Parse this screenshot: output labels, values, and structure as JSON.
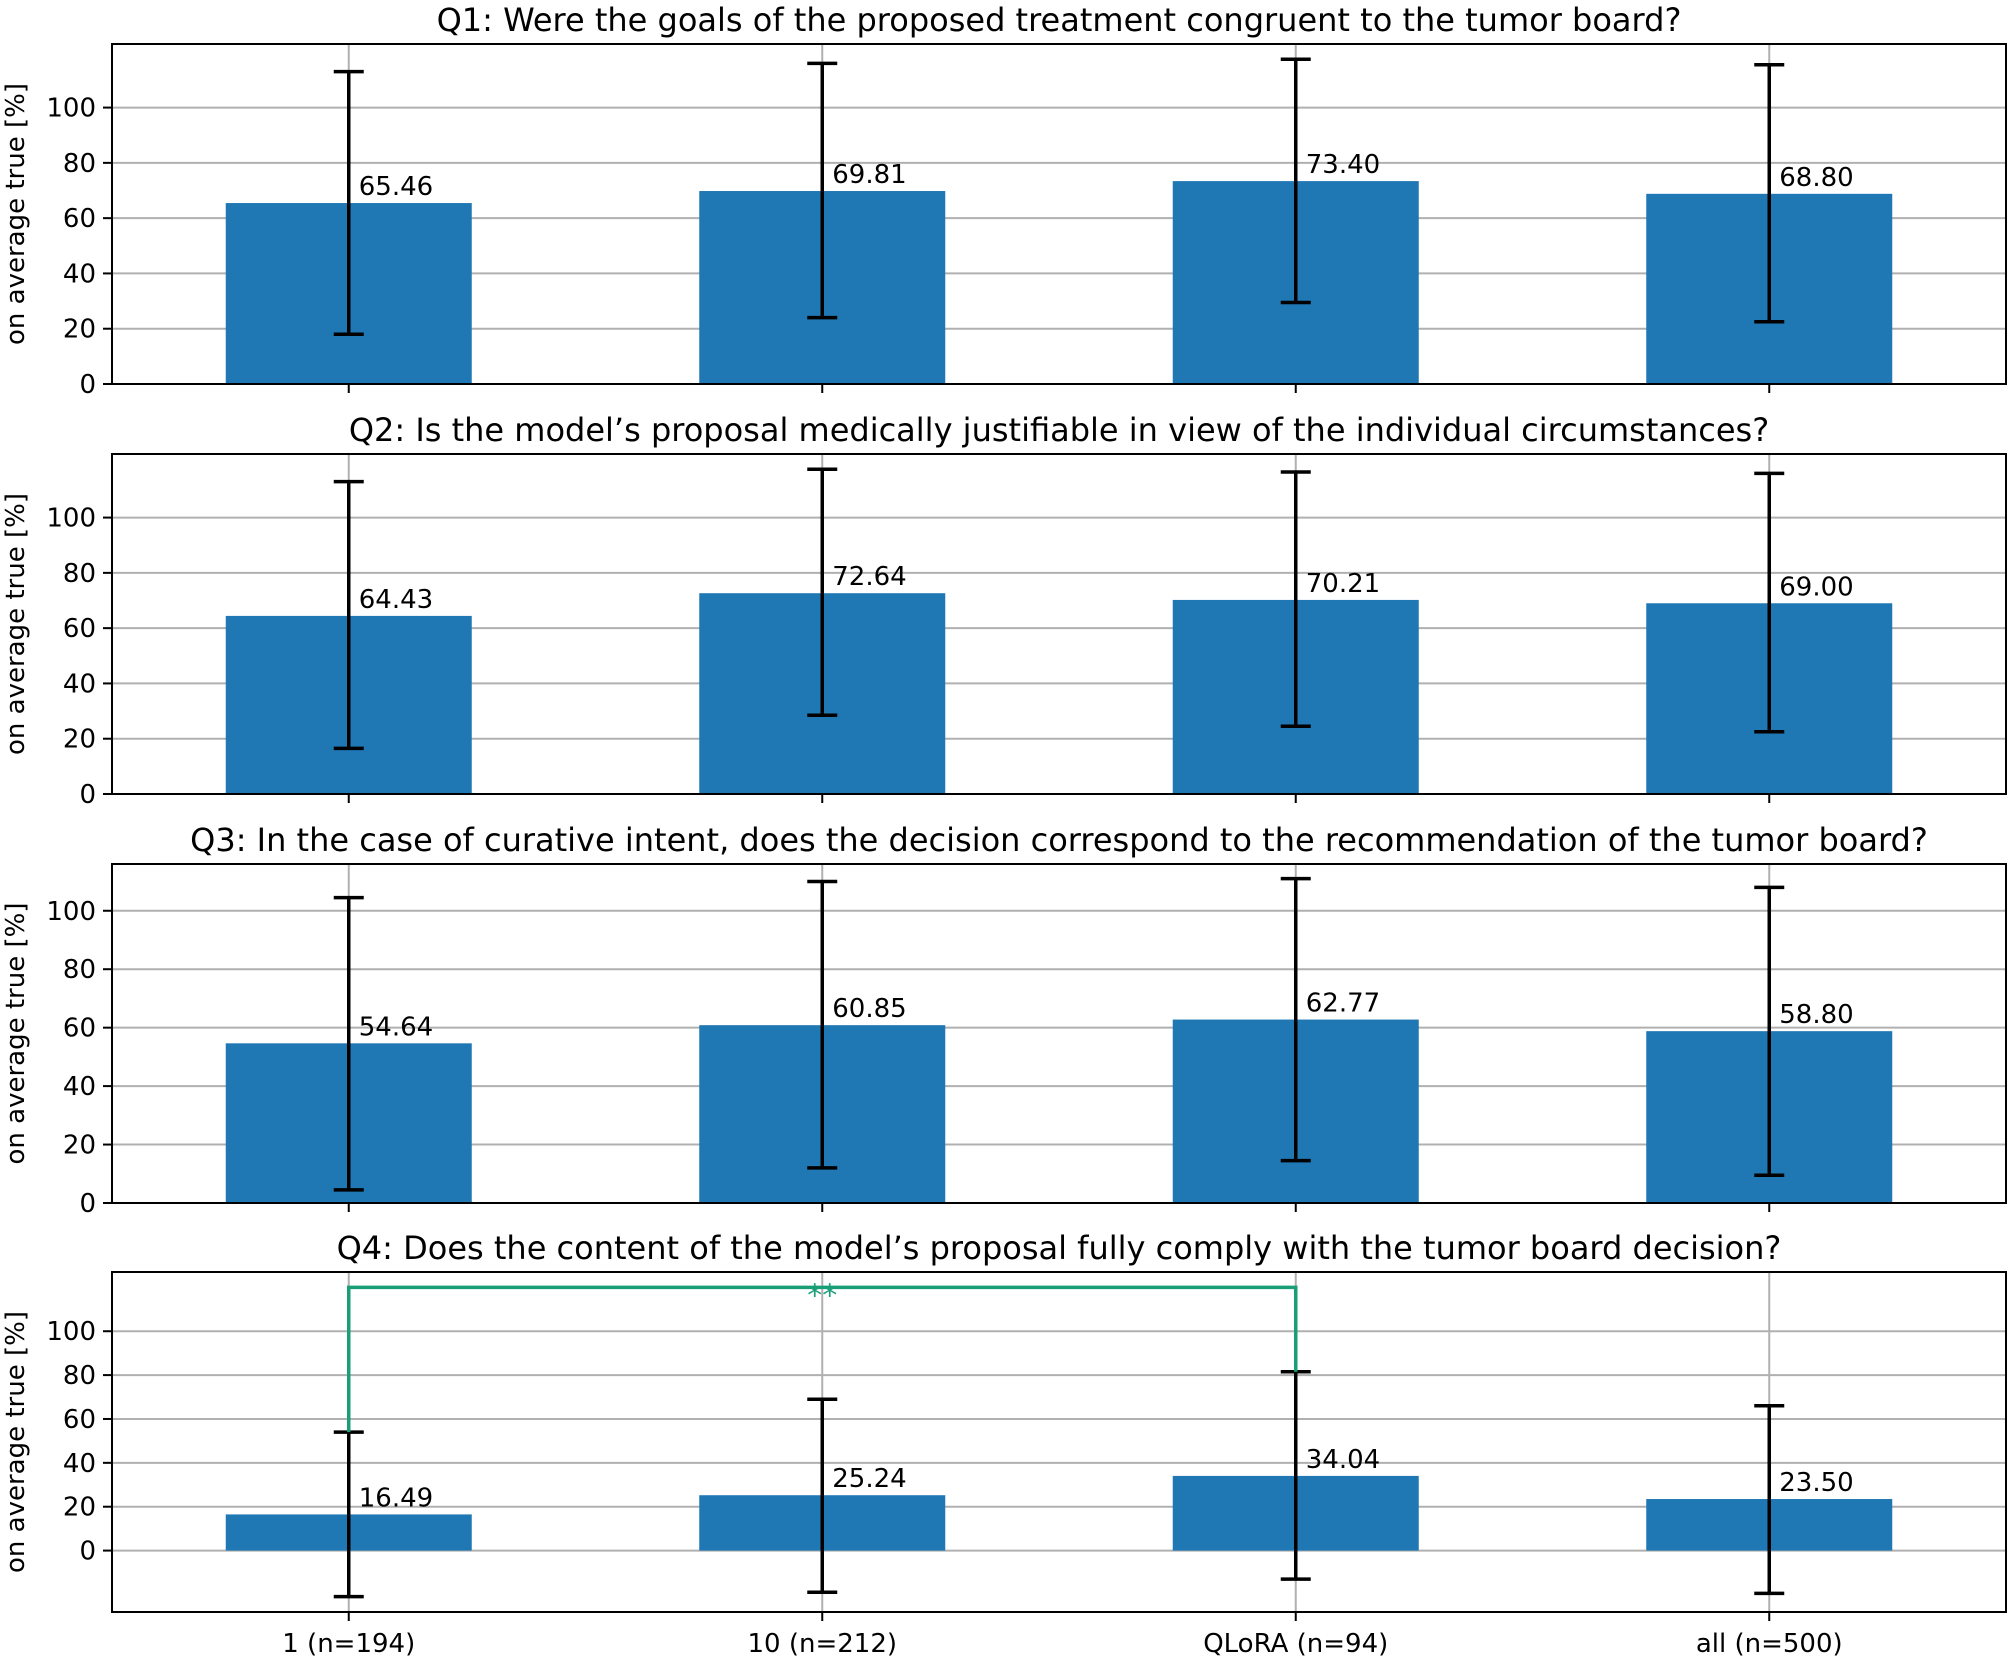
{
  "chart_data": [
    {
      "type": "bar",
      "title": "Q1: Were the goals of the proposed treatment congruent to the tumor board?",
      "ylabel": "on average true [%]",
      "categories": [
        "1 (n=194)",
        "10 (n=212)",
        "QLoRA (n=94)",
        "all (n=500)"
      ],
      "values": [
        65.46,
        69.81,
        73.4,
        68.8
      ],
      "value_labels": [
        "65.46",
        "69.81",
        "73.40",
        "68.80"
      ],
      "error_low": [
        18.0,
        24.0,
        29.5,
        22.5
      ],
      "error_high": [
        113.0,
        116.0,
        117.5,
        115.5
      ],
      "ylim": [
        0,
        123
      ],
      "yticks": [
        0,
        20,
        40,
        60,
        80,
        100
      ],
      "grid": true,
      "show_xticklabels": false
    },
    {
      "type": "bar",
      "title": "Q2: Is the model’s proposal medically justifiable in view of the individual circumstances?",
      "ylabel": "on average true [%]",
      "categories": [
        "1 (n=194)",
        "10 (n=212)",
        "QLoRA (n=94)",
        "all (n=500)"
      ],
      "values": [
        64.43,
        72.64,
        70.21,
        69.0
      ],
      "value_labels": [
        "64.43",
        "72.64",
        "70.21",
        "69.00"
      ],
      "error_low": [
        16.5,
        28.5,
        24.5,
        22.5
      ],
      "error_high": [
        113.0,
        117.5,
        116.5,
        116.0
      ],
      "ylim": [
        0,
        123
      ],
      "yticks": [
        0,
        20,
        40,
        60,
        80,
        100
      ],
      "grid": true,
      "show_xticklabels": false
    },
    {
      "type": "bar",
      "title": "Q3: In the case of curative intent, does the decision correspond to the recommendation of the tumor board?",
      "ylabel": "on average true [%]",
      "categories": [
        "1 (n=194)",
        "10 (n=212)",
        "QLoRA (n=94)",
        "all (n=500)"
      ],
      "values": [
        54.64,
        60.85,
        62.77,
        58.8
      ],
      "value_labels": [
        "54.64",
        "60.85",
        "62.77",
        "58.80"
      ],
      "error_low": [
        4.5,
        12.0,
        14.5,
        9.5
      ],
      "error_high": [
        104.5,
        110.0,
        111.0,
        108.0
      ],
      "ylim": [
        0,
        116
      ],
      "yticks": [
        0,
        20,
        40,
        60,
        80,
        100
      ],
      "grid": true,
      "show_xticklabels": false
    },
    {
      "type": "bar",
      "title": "Q4: Does the content of the model’s proposal fully comply with the tumor board decision?",
      "ylabel": "on average true [%]",
      "categories": [
        "1 (n=194)",
        "10 (n=212)",
        "QLoRA (n=94)",
        "all (n=500)"
      ],
      "values": [
        16.49,
        25.24,
        34.04,
        23.5
      ],
      "value_labels": [
        "16.49",
        "25.24",
        "34.04",
        "23.50"
      ],
      "error_low": [
        -21.0,
        -19.0,
        -13.0,
        -19.5
      ],
      "error_high": [
        54.0,
        69.0,
        81.5,
        66.0
      ],
      "ylim": [
        -28,
        127
      ],
      "yticks": [
        0,
        20,
        40,
        60,
        80,
        100
      ],
      "grid": true,
      "show_xticklabels": true,
      "significance": {
        "from": 0,
        "to": 2,
        "level": 120,
        "label": "**",
        "color": "#1a9e77"
      }
    }
  ],
  "style": {
    "bar_color": "#1f77b4",
    "error_color": "#000000",
    "grid_color": "#b0b0b0"
  }
}
